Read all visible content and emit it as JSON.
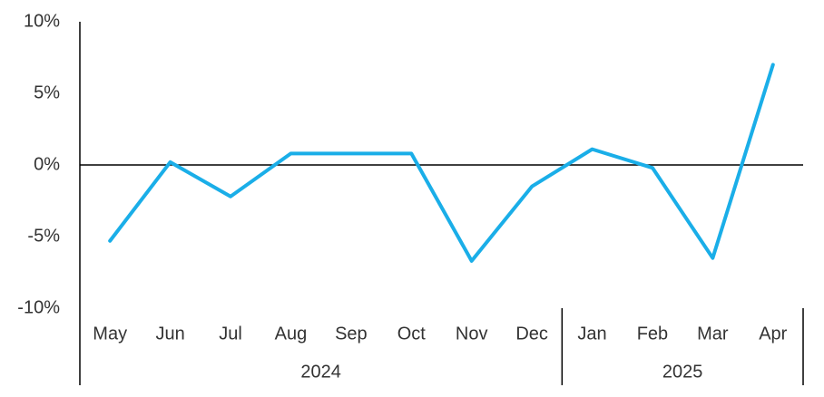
{
  "chart_data": {
    "type": "line",
    "categories": [
      "May",
      "Jun",
      "Jul",
      "Aug",
      "Sep",
      "Oct",
      "Nov",
      "Dec",
      "Jan",
      "Feb",
      "Mar",
      "Apr"
    ],
    "category_groups": [
      {
        "label": "2024",
        "size": 8
      },
      {
        "label": "2025",
        "size": 4
      }
    ],
    "series": [
      {
        "color": "#1aaee8",
        "values": [
          -5.3,
          0.2,
          -2.2,
          0.8,
          0.8,
          0.8,
          -6.7,
          -1.5,
          1.1,
          -0.2,
          -6.5,
          7.0
        ]
      }
    ],
    "ylim": [
      -10,
      10
    ],
    "yticks": [
      {
        "value": -10,
        "label": "-10%"
      },
      {
        "value": -5,
        "label": "-5%"
      },
      {
        "value": 0,
        "label": "0%"
      },
      {
        "value": 5,
        "label": "5%"
      },
      {
        "value": 10,
        "label": "10%"
      }
    ],
    "grid": false
  }
}
